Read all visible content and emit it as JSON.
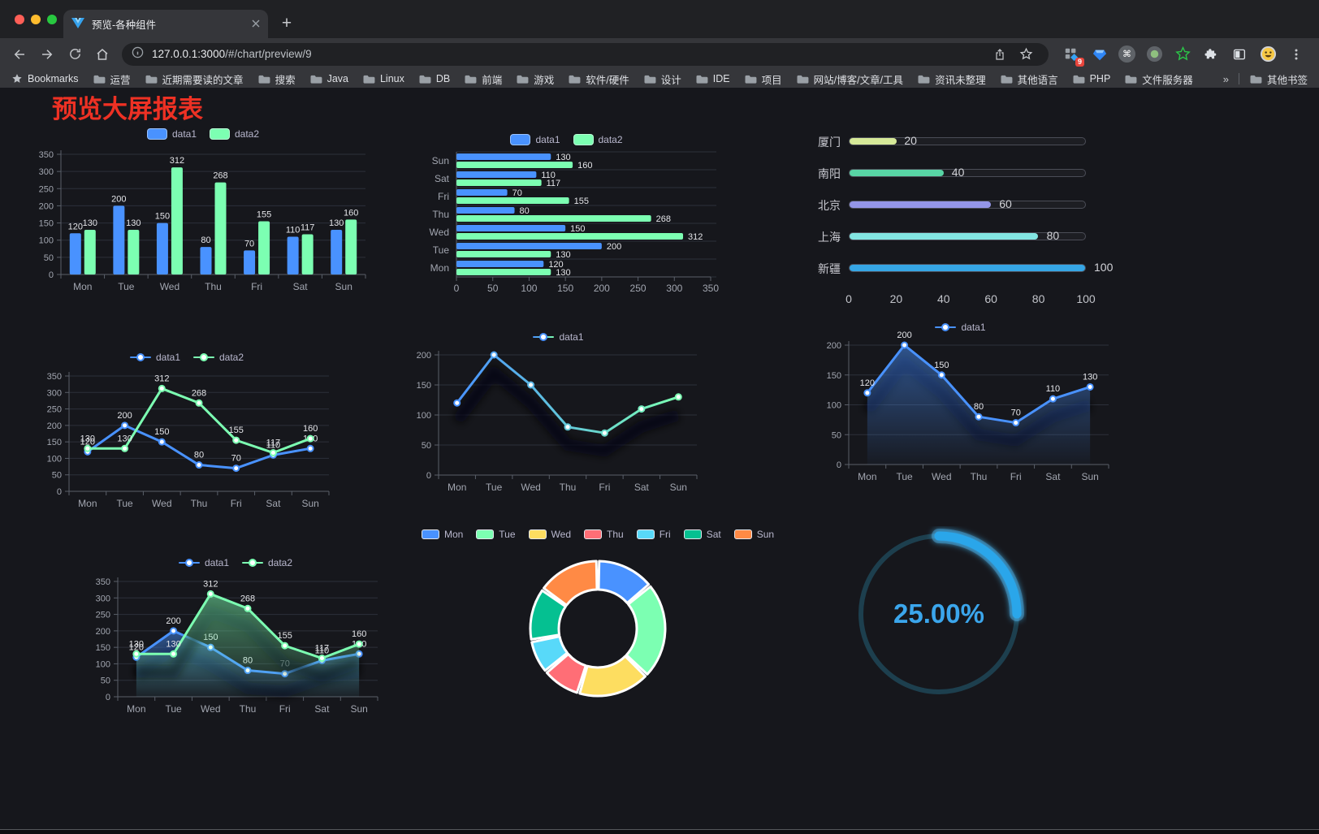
{
  "browser": {
    "tab_title": "预览-各种组件",
    "url_host": "127.0.0.1:3000",
    "url_path": "/#/chart/preview/9",
    "extensions_badge": "9",
    "bookmarks_label": "Bookmarks",
    "bookmarks": [
      "运营",
      "近期需要读的文章",
      "搜索",
      "Java",
      "Linux",
      "DB",
      "前端",
      "游戏",
      "软件/硬件",
      "设计",
      "IDE",
      "项目",
      "网站/博客/文章/工具",
      "资讯未整理",
      "其他语言",
      "PHP",
      "文件服务器"
    ],
    "overflow_chevron": "»",
    "other_bookmarks": "其他书签",
    "icons": {
      "back": "left-arrow",
      "forward": "right-arrow",
      "reload": "circular-arrow",
      "home": "house",
      "info": "info-circle",
      "share": "box-up-arrow",
      "star": "star-outline",
      "puzzle": "extensions-puzzle",
      "side-panel": "split-square",
      "menu": "vertical-dots",
      "folder": "folder",
      "bookmark-star": "filled-star",
      "tab-close": "x",
      "new-tab": "plus"
    }
  },
  "page": {
    "title": "预览大屏报表"
  },
  "colors": {
    "title_red": "#ee3124",
    "data1_blue": "#4992ff",
    "data2_green": "#7cffb2",
    "gauge_blue": "#29a6ea",
    "content_bg": "#16171c"
  },
  "chart_data": [
    {
      "id": "grouped-bar",
      "type": "bar",
      "categories": [
        "Mon",
        "Tue",
        "Wed",
        "Thu",
        "Fri",
        "Sat",
        "Sun"
      ],
      "series": [
        {
          "name": "data1",
          "color": "#4992ff",
          "values": [
            120,
            200,
            150,
            80,
            70,
            110,
            130
          ]
        },
        {
          "name": "data2",
          "color": "#7cffb2",
          "values": [
            130,
            130,
            312,
            268,
            155,
            117,
            160
          ]
        }
      ],
      "ylim": [
        0,
        350
      ],
      "ystep": 50,
      "legend_position": "top",
      "grid": true,
      "labels": true
    },
    {
      "id": "horizontal-bar",
      "type": "bar-horizontal",
      "categories": [
        "Mon",
        "Tue",
        "Wed",
        "Thu",
        "Fri",
        "Sat",
        "Sun"
      ],
      "category_display_order_top_to_bottom": [
        "Sun",
        "Sat",
        "Fri",
        "Thu",
        "Wed",
        "Tue",
        "Mon"
      ],
      "series": [
        {
          "name": "data1",
          "color": "#4992ff",
          "values": [
            120,
            200,
            150,
            80,
            70,
            110,
            130
          ]
        },
        {
          "name": "data2",
          "color": "#7cffb2",
          "values": [
            130,
            130,
            312,
            268,
            155,
            117,
            160
          ]
        }
      ],
      "xlim": [
        0,
        350
      ],
      "xstep": 50,
      "legend_position": "top",
      "labels": true
    },
    {
      "id": "city-progress",
      "type": "bar-horizontal",
      "categories": [
        "厦门",
        "南阳",
        "北京",
        "上海",
        "新疆"
      ],
      "values": [
        20,
        40,
        60,
        80,
        100
      ],
      "colors": [
        "#d6e998",
        "#58d5a5",
        "#9496e8",
        "#83e6e2",
        "#36a6e5"
      ],
      "xlim": [
        0,
        100
      ],
      "xticks": [
        0,
        20,
        40,
        60,
        80,
        100
      ],
      "labels": true
    },
    {
      "id": "two-series-line",
      "type": "line",
      "categories": [
        "Mon",
        "Tue",
        "Wed",
        "Thu",
        "Fri",
        "Sat",
        "Sun"
      ],
      "series": [
        {
          "name": "data1",
          "color": "#4992ff",
          "values": [
            120,
            200,
            150,
            80,
            70,
            110,
            130
          ]
        },
        {
          "name": "data2",
          "color": "#7cffb2",
          "values": [
            130,
            130,
            312,
            268,
            155,
            117,
            160
          ]
        }
      ],
      "ylim": [
        0,
        350
      ],
      "ystep": 50,
      "legend_position": "top",
      "labels": true
    },
    {
      "id": "gradient-line",
      "type": "line",
      "categories": [
        "Mon",
        "Tue",
        "Wed",
        "Thu",
        "Fri",
        "Sat",
        "Sun"
      ],
      "series": [
        {
          "name": "data1",
          "color": "#4992ff",
          "color_end": "#7cffb2",
          "values": [
            120,
            200,
            150,
            80,
            70,
            110,
            130
          ]
        }
      ],
      "ylim": [
        0,
        200
      ],
      "ystep": 50,
      "legend_position": "top",
      "labels": false
    },
    {
      "id": "area-line",
      "type": "area",
      "categories": [
        "Mon",
        "Tue",
        "Wed",
        "Thu",
        "Fri",
        "Sat",
        "Sun"
      ],
      "series": [
        {
          "name": "data1",
          "color": "#4992ff",
          "values": [
            120,
            200,
            150,
            80,
            70,
            110,
            130
          ]
        }
      ],
      "ylim": [
        0,
        200
      ],
      "ystep": 50,
      "legend_position": "top",
      "labels": true
    },
    {
      "id": "two-series-area",
      "type": "area",
      "categories": [
        "Mon",
        "Tue",
        "Wed",
        "Thu",
        "Fri",
        "Sat",
        "Sun"
      ],
      "series": [
        {
          "name": "data1",
          "color": "#4992ff",
          "values": [
            120,
            200,
            150,
            80,
            70,
            110,
            130
          ]
        },
        {
          "name": "data2",
          "color": "#7cffb2",
          "values": [
            130,
            130,
            312,
            268,
            155,
            117,
            160
          ]
        }
      ],
      "ylim": [
        0,
        350
      ],
      "ystep": 50,
      "legend_position": "top",
      "labels": true
    },
    {
      "id": "donut",
      "type": "pie",
      "labels": [
        "Mon",
        "Tue",
        "Wed",
        "Thu",
        "Fri",
        "Sat",
        "Sun"
      ],
      "values": [
        120,
        200,
        150,
        80,
        70,
        110,
        130
      ],
      "colors": [
        "#4992ff",
        "#7cffb2",
        "#fddd60",
        "#ff6e76",
        "#58d9f9",
        "#05c091",
        "#ff8a45"
      ],
      "donut": true,
      "legend_position": "top"
    },
    {
      "id": "gauge",
      "type": "gauge",
      "value_percent": 25,
      "label": "25.00%",
      "color": "#29a6ea",
      "track_color": "#1d3f4e"
    }
  ]
}
